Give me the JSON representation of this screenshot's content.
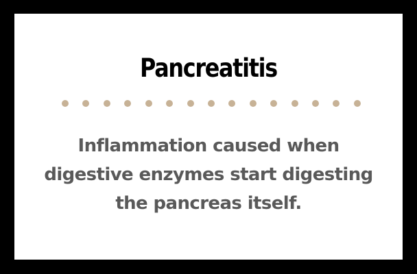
{
  "card": {
    "title": "Pancreatitis",
    "definition": "Inflammation caused when digestive enzymes start digesting the pancreas itself."
  },
  "colors": {
    "frame": "#000000",
    "card_background": "#ffffff",
    "title_text": "#000000",
    "definition_text": "#595959",
    "dot": "#c7b296"
  },
  "divider": {
    "dot_count": 15
  }
}
